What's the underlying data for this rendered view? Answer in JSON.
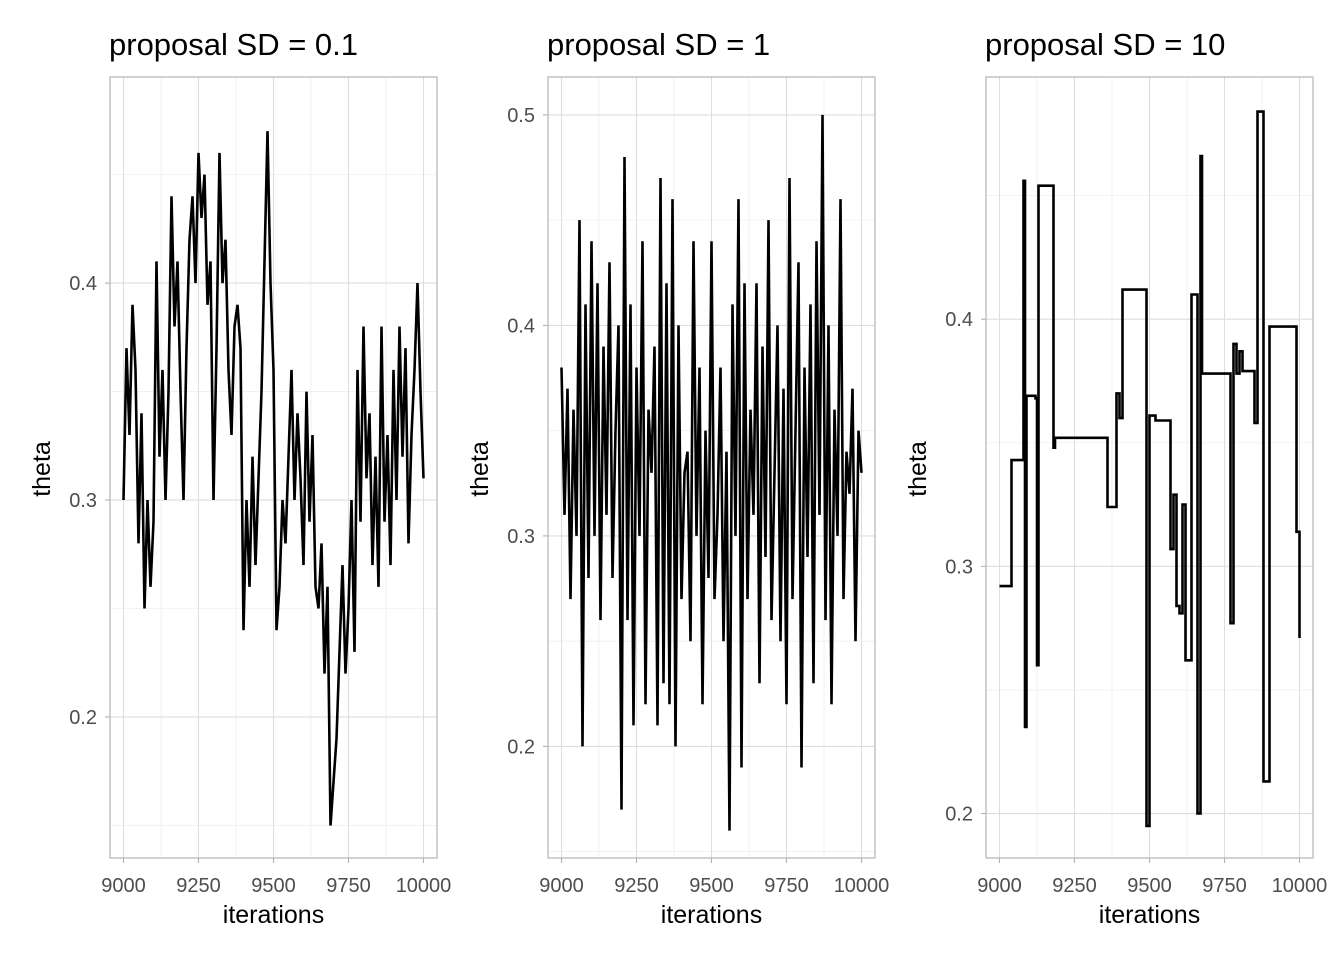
{
  "chart_data": [
    {
      "type": "line",
      "title": "proposal SD = 0.1",
      "xlabel": "iterations",
      "ylabel": "theta",
      "xlim": [
        8955,
        10045
      ],
      "ylim": [
        0.135,
        0.495
      ],
      "x_ticks": [
        9000,
        9250,
        9500,
        9750,
        10000
      ],
      "x_tick_labels": [
        "9000",
        "9250",
        "9500",
        "9750",
        "10000"
      ],
      "y_ticks": [
        0.2,
        0.3,
        0.4
      ],
      "y_tick_labels": [
        "0.2",
        "0.3",
        "0.4"
      ],
      "grid": true,
      "x": [
        9000,
        9010,
        9020,
        9030,
        9040,
        9050,
        9060,
        9070,
        9080,
        9090,
        9100,
        9110,
        9120,
        9130,
        9140,
        9150,
        9160,
        9170,
        9180,
        9190,
        9200,
        9210,
        9220,
        9230,
        9240,
        9250,
        9260,
        9270,
        9280,
        9290,
        9300,
        9310,
        9320,
        9330,
        9340,
        9350,
        9360,
        9370,
        9380,
        9390,
        9400,
        9410,
        9420,
        9430,
        9440,
        9450,
        9460,
        9470,
        9480,
        9490,
        9500,
        9510,
        9520,
        9530,
        9540,
        9550,
        9560,
        9570,
        9580,
        9590,
        9600,
        9610,
        9620,
        9630,
        9640,
        9650,
        9660,
        9670,
        9680,
        9690,
        9700,
        9710,
        9720,
        9730,
        9740,
        9750,
        9760,
        9770,
        9780,
        9790,
        9800,
        9810,
        9820,
        9830,
        9840,
        9850,
        9860,
        9870,
        9880,
        9890,
        9900,
        9910,
        9920,
        9930,
        9940,
        9950,
        9960,
        9970,
        9980,
        9990,
        10000
      ],
      "values": [
        0.3,
        0.37,
        0.33,
        0.39,
        0.36,
        0.28,
        0.34,
        0.25,
        0.3,
        0.26,
        0.29,
        0.41,
        0.32,
        0.36,
        0.3,
        0.35,
        0.44,
        0.38,
        0.41,
        0.35,
        0.3,
        0.37,
        0.42,
        0.44,
        0.4,
        0.46,
        0.43,
        0.45,
        0.39,
        0.41,
        0.3,
        0.37,
        0.46,
        0.4,
        0.42,
        0.36,
        0.33,
        0.38,
        0.39,
        0.37,
        0.24,
        0.3,
        0.26,
        0.32,
        0.27,
        0.31,
        0.35,
        0.41,
        0.47,
        0.4,
        0.36,
        0.24,
        0.26,
        0.3,
        0.28,
        0.32,
        0.36,
        0.3,
        0.34,
        0.31,
        0.27,
        0.35,
        0.29,
        0.33,
        0.26,
        0.25,
        0.28,
        0.22,
        0.26,
        0.15,
        0.17,
        0.19,
        0.23,
        0.27,
        0.22,
        0.25,
        0.3,
        0.23,
        0.36,
        0.29,
        0.38,
        0.31,
        0.34,
        0.27,
        0.32,
        0.26,
        0.38,
        0.29,
        0.33,
        0.27,
        0.36,
        0.3,
        0.38,
        0.32,
        0.37,
        0.28,
        0.33,
        0.36,
        0.4,
        0.35,
        0.31
      ]
    },
    {
      "type": "line",
      "title": "proposal SD = 1",
      "xlabel": "iterations",
      "ylabel": "theta",
      "xlim": [
        8955,
        10045
      ],
      "ylim": [
        0.147,
        0.518
      ],
      "x_ticks": [
        9000,
        9250,
        9500,
        9750,
        10000
      ],
      "x_tick_labels": [
        "9000",
        "9250",
        "9500",
        "9750",
        "10000"
      ],
      "y_ticks": [
        0.2,
        0.3,
        0.4,
        0.5
      ],
      "y_tick_labels": [
        "0.2",
        "0.3",
        "0.4",
        "0.5"
      ],
      "grid": true,
      "x": [
        9000,
        9010,
        9020,
        9030,
        9040,
        9050,
        9060,
        9070,
        9080,
        9090,
        9100,
        9110,
        9120,
        9130,
        9140,
        9150,
        9160,
        9170,
        9180,
        9190,
        9200,
        9210,
        9220,
        9230,
        9240,
        9250,
        9260,
        9270,
        9280,
        9290,
        9300,
        9310,
        9320,
        9330,
        9340,
        9350,
        9360,
        9370,
        9380,
        9390,
        9400,
        9410,
        9420,
        9430,
        9440,
        9450,
        9460,
        9470,
        9480,
        9490,
        9500,
        9510,
        9520,
        9530,
        9540,
        9550,
        9560,
        9570,
        9580,
        9590,
        9600,
        9610,
        9620,
        9630,
        9640,
        9650,
        9660,
        9670,
        9680,
        9690,
        9700,
        9710,
        9720,
        9730,
        9740,
        9750,
        9760,
        9770,
        9780,
        9790,
        9800,
        9810,
        9820,
        9830,
        9840,
        9850,
        9860,
        9870,
        9880,
        9890,
        9900,
        9910,
        9920,
        9930,
        9940,
        9950,
        9960,
        9970,
        9980,
        9990,
        10000
      ],
      "values": [
        0.38,
        0.31,
        0.37,
        0.27,
        0.36,
        0.3,
        0.45,
        0.2,
        0.41,
        0.28,
        0.44,
        0.3,
        0.42,
        0.26,
        0.39,
        0.31,
        0.43,
        0.28,
        0.35,
        0.4,
        0.17,
        0.48,
        0.26,
        0.41,
        0.21,
        0.38,
        0.3,
        0.44,
        0.22,
        0.36,
        0.33,
        0.39,
        0.21,
        0.47,
        0.23,
        0.42,
        0.22,
        0.46,
        0.2,
        0.4,
        0.27,
        0.33,
        0.34,
        0.25,
        0.44,
        0.3,
        0.38,
        0.22,
        0.35,
        0.28,
        0.44,
        0.27,
        0.31,
        0.38,
        0.25,
        0.34,
        0.16,
        0.41,
        0.3,
        0.46,
        0.19,
        0.42,
        0.27,
        0.36,
        0.31,
        0.42,
        0.23,
        0.39,
        0.29,
        0.45,
        0.26,
        0.33,
        0.4,
        0.25,
        0.37,
        0.22,
        0.47,
        0.27,
        0.35,
        0.43,
        0.19,
        0.38,
        0.29,
        0.41,
        0.23,
        0.44,
        0.31,
        0.5,
        0.26,
        0.4,
        0.22,
        0.36,
        0.3,
        0.46,
        0.27,
        0.34,
        0.32,
        0.37,
        0.25,
        0.35,
        0.33
      ]
    },
    {
      "type": "line",
      "title": "proposal SD = 10",
      "xlabel": "iterations",
      "ylabel": "theta",
      "xlim": [
        8955,
        10045
      ],
      "ylim": [
        0.182,
        0.498
      ],
      "x_ticks": [
        9000,
        9250,
        9500,
        9750,
        10000
      ],
      "x_tick_labels": [
        "9000",
        "9250",
        "9500",
        "9750",
        "10000"
      ],
      "y_ticks": [
        0.2,
        0.3,
        0.4
      ],
      "y_tick_labels": [
        "0.2",
        "0.3",
        "0.4"
      ],
      "grid": true,
      "step": true,
      "x": [
        9000,
        9040,
        9060,
        9080,
        9085,
        9090,
        9100,
        9120,
        9125,
        9130,
        9160,
        9180,
        9185,
        9190,
        9200,
        9300,
        9360,
        9370,
        9390,
        9400,
        9410,
        9450,
        9480,
        9490,
        9500,
        9520,
        9550,
        9570,
        9580,
        9590,
        9600,
        9610,
        9620,
        9630,
        9640,
        9660,
        9665,
        9670,
        9675,
        9700,
        9730,
        9760,
        9770,
        9780,
        9790,
        9800,
        9810,
        9820,
        9850,
        9860,
        9880,
        9890,
        9900,
        9950,
        9990,
        10000
      ],
      "values": [
        0.292,
        0.343,
        0.343,
        0.456,
        0.235,
        0.369,
        0.369,
        0.368,
        0.26,
        0.454,
        0.454,
        0.348,
        0.352,
        0.352,
        0.352,
        0.352,
        0.324,
        0.324,
        0.37,
        0.36,
        0.412,
        0.412,
        0.412,
        0.195,
        0.361,
        0.359,
        0.359,
        0.307,
        0.329,
        0.284,
        0.281,
        0.325,
        0.262,
        0.262,
        0.41,
        0.2,
        0.2,
        0.466,
        0.378,
        0.378,
        0.378,
        0.378,
        0.277,
        0.39,
        0.378,
        0.387,
        0.379,
        0.379,
        0.358,
        0.484,
        0.213,
        0.213,
        0.397,
        0.397,
        0.314,
        0.271
      ]
    }
  ]
}
